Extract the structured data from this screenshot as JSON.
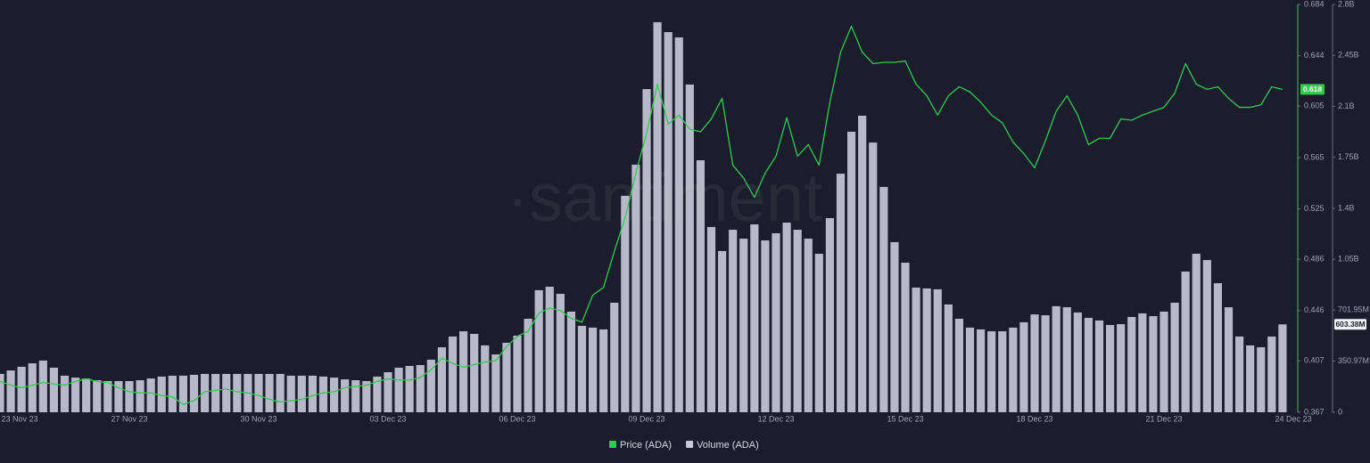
{
  "chart_data": {
    "type": "combo",
    "watermark": "·santiment",
    "categories": [
      "23 Nov 23",
      null,
      null,
      null,
      null,
      null,
      null,
      null,
      null,
      null,
      null,
      null,
      "27 Nov 23",
      null,
      null,
      null,
      null,
      null,
      null,
      null,
      null,
      null,
      null,
      null,
      "30 Nov 23",
      null,
      null,
      null,
      null,
      null,
      null,
      null,
      null,
      null,
      null,
      null,
      "03 Dec 23",
      null,
      null,
      null,
      null,
      null,
      null,
      null,
      null,
      null,
      null,
      null,
      "06 Dec 23",
      null,
      null,
      null,
      null,
      null,
      null,
      null,
      null,
      null,
      null,
      null,
      "09 Dec 23",
      null,
      null,
      null,
      null,
      null,
      null,
      null,
      null,
      null,
      null,
      null,
      "12 Dec 23",
      null,
      null,
      null,
      null,
      null,
      null,
      null,
      null,
      null,
      null,
      null,
      "15 Dec 23",
      null,
      null,
      null,
      null,
      null,
      null,
      null,
      null,
      null,
      null,
      null,
      "18 Dec 23",
      null,
      null,
      null,
      null,
      null,
      null,
      null,
      null,
      null,
      null,
      null,
      "21 Dec 23",
      null,
      null,
      null,
      null,
      null,
      null,
      null,
      null,
      null,
      null,
      null,
      "24 Dec 23"
    ],
    "series": [
      {
        "name": "Volume (ADA)",
        "type": "bar",
        "axis": "y2",
        "color": "#c9cbd9",
        "current_label": "603.38M",
        "values": [
          263000000,
          287000000,
          312000000,
          336000000,
          355000000,
          306000000,
          251000000,
          238000000,
          232000000,
          220000000,
          214000000,
          214000000,
          214000000,
          220000000,
          232000000,
          245000000,
          251000000,
          251000000,
          257000000,
          263000000,
          263000000,
          263000000,
          263000000,
          263000000,
          263000000,
          263000000,
          263000000,
          251000000,
          251000000,
          251000000,
          245000000,
          238000000,
          226000000,
          220000000,
          214000000,
          245000000,
          275000000,
          306000000,
          318000000,
          324000000,
          361000000,
          446000000,
          520000000,
          556000000,
          538000000,
          459000000,
          397000000,
          477000000,
          526000000,
          642000000,
          838000000,
          862000000,
          813000000,
          691000000,
          593000000,
          581000000,
          569000000,
          752000000,
          1486000000,
          1700000000,
          2219000000,
          2678000000,
          2610000000,
          2574000000,
          2250000000,
          1730000000,
          1272000000,
          1107000000,
          1253000000,
          1192000000,
          1290000000,
          1180000000,
          1229000000,
          1302000000,
          1253000000,
          1192000000,
          1088000000,
          1333000000,
          1638000000,
          1926000000,
          2036000000,
          1852000000,
          1547000000,
          1168000000,
          1027000000,
          856000000,
          850000000,
          844000000,
          740000000,
          642000000,
          581000000,
          569000000,
          556000000,
          556000000,
          581000000,
          618000000,
          672000000,
          666000000,
          728000000,
          721000000,
          685000000,
          648000000,
          630000000,
          599000000,
          605000000,
          654000000,
          679000000,
          660000000,
          691000000,
          752000000,
          966000000,
          1088000000,
          1045000000,
          886000000,
          721000000,
          520000000,
          459000000,
          446000000,
          520000000,
          603380000,
          null
        ]
      },
      {
        "name": "Price (ADA)",
        "type": "line",
        "axis": "y",
        "color": "#2fcb4e",
        "current_label": "0.618",
        "values": [
          0.391,
          0.388,
          0.386,
          0.388,
          0.39,
          0.389,
          0.388,
          0.391,
          0.393,
          0.391,
          0.39,
          0.386,
          0.383,
          0.382,
          0.382,
          0.38,
          0.379,
          0.373,
          0.376,
          0.383,
          0.384,
          0.385,
          0.383,
          0.382,
          0.38,
          0.377,
          0.375,
          0.376,
          0.377,
          0.38,
          0.382,
          0.383,
          0.386,
          0.387,
          0.388,
          0.391,
          0.393,
          0.392,
          0.392,
          0.394,
          0.4,
          0.409,
          0.405,
          0.402,
          0.404,
          0.406,
          0.407,
          0.418,
          0.426,
          0.43,
          0.444,
          0.448,
          0.446,
          0.44,
          0.437,
          0.458,
          0.464,
          0.492,
          0.518,
          0.553,
          0.584,
          0.622,
          0.591,
          0.598,
          0.587,
          0.585,
          0.595,
          0.611,
          0.559,
          0.549,
          0.534,
          0.553,
          0.566,
          0.596,
          0.566,
          0.575,
          0.559,
          0.608,
          0.647,
          0.667,
          0.647,
          0.638,
          0.639,
          0.639,
          0.64,
          0.622,
          0.613,
          0.598,
          0.613,
          0.62,
          0.616,
          0.608,
          0.598,
          0.592,
          0.577,
          0.568,
          0.557,
          0.578,
          0.601,
          0.613,
          0.598,
          0.575,
          0.58,
          0.58,
          0.595,
          0.594,
          0.598,
          0.601,
          0.604,
          0.615,
          0.638,
          0.622,
          0.618,
          0.62,
          0.611,
          0.604,
          0.604,
          0.606,
          0.62,
          0.618,
          null
        ]
      }
    ],
    "ylim": [
      0.367,
      0.684
    ],
    "yticks": [
      0.684,
      0.644,
      0.605,
      0.565,
      0.525,
      0.486,
      0.446,
      0.407,
      0.367
    ],
    "y2lim": [
      0,
      2800000000
    ],
    "y2ticks": [
      {
        "value": 2800000000,
        "label": "2.8B"
      },
      {
        "value": 2450000000,
        "label": "2.45B"
      },
      {
        "value": 2100000000,
        "label": "2.1B"
      },
      {
        "value": 1750000000,
        "label": "1.75B"
      },
      {
        "value": 1400000000,
        "label": "1.4B"
      },
      {
        "value": 1050000000,
        "label": "1.05B"
      },
      {
        "value": 701950000,
        "label": "701.95M"
      },
      {
        "value": 350970000,
        "label": "350.97M"
      },
      0
    ],
    "grid": false,
    "legend": "bottom"
  }
}
